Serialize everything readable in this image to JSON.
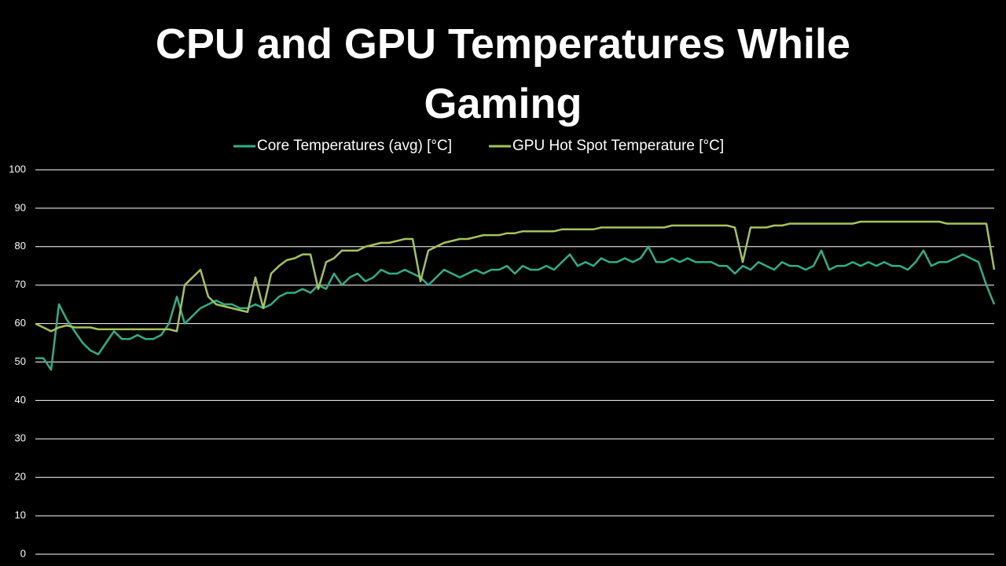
{
  "chart_data": {
    "type": "line",
    "title": "CPU and GPU Temperatures While Gaming",
    "ylim": [
      0,
      100
    ],
    "yticks": [
      0,
      10,
      20,
      30,
      40,
      50,
      60,
      70,
      80,
      90,
      100
    ],
    "grid": true,
    "legend": "top",
    "series": [
      {
        "name": "Core Temperatures (avg) [°C]",
        "color": "#2fae8a",
        "values": [
          51,
          51,
          48,
          65,
          61,
          58,
          55,
          53,
          52,
          55,
          58,
          56,
          56,
          57,
          56,
          56,
          57,
          60,
          67,
          60,
          62,
          64,
          65,
          66,
          65,
          65,
          64,
          64,
          65,
          64,
          65,
          67,
          68,
          68,
          69,
          68,
          70,
          69,
          73,
          70,
          72,
          73,
          71,
          72,
          74,
          73,
          73,
          74,
          73,
          72,
          70,
          72,
          74,
          73,
          72,
          73,
          74,
          73,
          74,
          74,
          75,
          73,
          75,
          74,
          74,
          75,
          74,
          76,
          78,
          75,
          76,
          75,
          77,
          76,
          76,
          77,
          76,
          77,
          80,
          76,
          76,
          77,
          76,
          77,
          76,
          76,
          76,
          75,
          75,
          73,
          75,
          74,
          76,
          75,
          74,
          76,
          75,
          75,
          74,
          75,
          79,
          74,
          75,
          75,
          76,
          75,
          76,
          75,
          76,
          75,
          75,
          74,
          76,
          79,
          75,
          76,
          76,
          77,
          78,
          77,
          76,
          70,
          65
        ]
      },
      {
        "name": "GPU Hot Spot Temperature [°C]",
        "color": "#a4c35c",
        "values": [
          60,
          59,
          58,
          59,
          59.5,
          59,
          59,
          59,
          58.5,
          58.5,
          58.5,
          58.5,
          58.5,
          58.5,
          58.5,
          58.5,
          58.5,
          58.5,
          58,
          70,
          72,
          74,
          67,
          65,
          64.5,
          64,
          63.5,
          63,
          72,
          64,
          73,
          75,
          76.5,
          77,
          78,
          78,
          69,
          76,
          77,
          79,
          79,
          79,
          80,
          80.5,
          81,
          81,
          81.5,
          82,
          82,
          71,
          79,
          80,
          81,
          81.5,
          82,
          82,
          82.5,
          83,
          83,
          83,
          83.5,
          83.5,
          84,
          84,
          84,
          84,
          84,
          84.5,
          84.5,
          84.5,
          84.5,
          84.5,
          85,
          85,
          85,
          85,
          85,
          85,
          85,
          85,
          85,
          85.5,
          85.5,
          85.5,
          85.5,
          85.5,
          85.5,
          85.5,
          85.5,
          85,
          76,
          85,
          85,
          85,
          85.5,
          85.5,
          86,
          86,
          86,
          86,
          86,
          86,
          86,
          86,
          86,
          86.5,
          86.5,
          86.5,
          86.5,
          86.5,
          86.5,
          86.5,
          86.5,
          86.5,
          86.5,
          86.5,
          86,
          86,
          86,
          86,
          86,
          86,
          74
        ]
      }
    ]
  }
}
